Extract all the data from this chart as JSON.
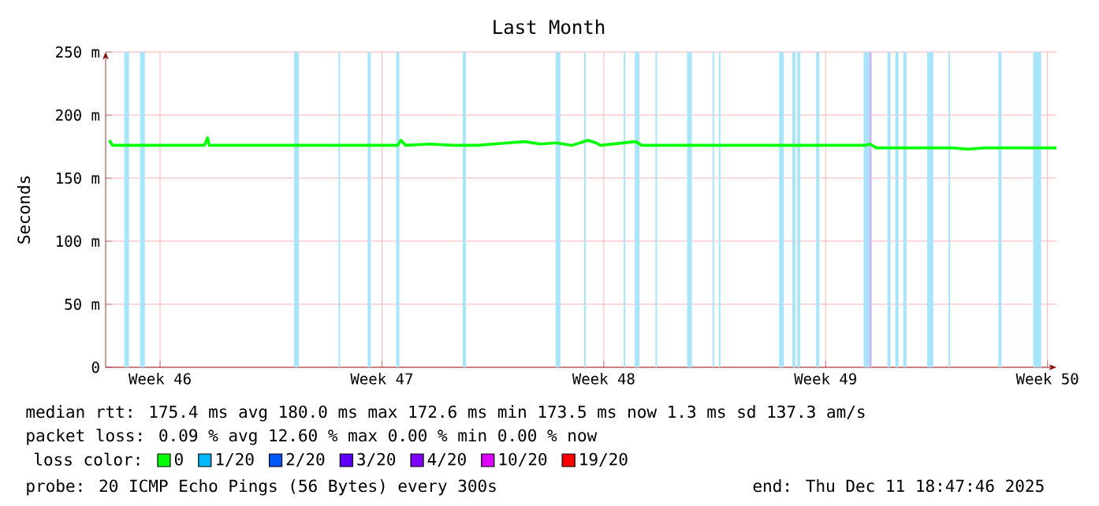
{
  "chart_data": {
    "type": "line",
    "title": "Last Month",
    "ylabel": "Seconds",
    "x": [
      "2025-11-11T21:36",
      "2025-11-12T00:00",
      "2025-11-14T21:36",
      "2025-11-15T00:00",
      "2025-11-15T01:12",
      "2025-11-21T00:00",
      "2025-11-21T02:24",
      "2025-11-21T06:00",
      "2025-11-22T00:00",
      "2025-11-22T18:00",
      "2025-11-23T12:00",
      "2025-11-24T12:00",
      "2025-11-25T00:00",
      "2025-11-25T12:00",
      "2025-11-26T00:00",
      "2025-11-26T12:00",
      "2025-11-27T00:00",
      "2025-11-27T06:00",
      "2025-11-27T09:36",
      "2025-11-28T12:00",
      "2025-11-28T16:48",
      "2025-12-05T18:00",
      "2025-12-05T21:36",
      "2025-12-06T02:24",
      "2025-12-06T12:00",
      "2025-12-08T12:00",
      "2025-12-09T00:00",
      "2025-12-09T12:00",
      "2025-12-11T18:47"
    ],
    "series": [
      {
        "name": "0",
        "color": "#00ff00",
        "values": [
          180,
          176,
          176,
          182,
          176,
          176,
          180,
          176,
          177,
          176,
          176,
          178,
          179,
          177,
          178,
          176,
          180,
          178,
          176,
          179,
          176,
          176,
          177,
          174,
          174,
          174,
          173,
          174,
          174
        ]
      },
      {
        "name": "1/20",
        "color": "#00b8ff",
        "values": [
          null,
          null,
          null,
          null,
          null,
          null,
          null,
          null,
          null,
          null,
          null,
          null,
          null,
          null,
          null,
          null,
          null,
          null,
          null,
          null,
          null,
          null,
          null,
          null,
          null,
          null,
          null,
          null,
          null
        ]
      },
      {
        "name": "2/20",
        "color": "#0059ff",
        "values": [
          null,
          null,
          null,
          null,
          null,
          null,
          null,
          null,
          null,
          null,
          null,
          null,
          null,
          null,
          null,
          null,
          null,
          null,
          null,
          null,
          null,
          null,
          null,
          null,
          null,
          null,
          null,
          null,
          null
        ]
      },
      {
        "name": "3/20",
        "color": "#5e00ff",
        "values": [
          null,
          null,
          null,
          null,
          null,
          null,
          null,
          null,
          null,
          null,
          null,
          null,
          null,
          null,
          null,
          null,
          null,
          null,
          null,
          null,
          null,
          null,
          null,
          null,
          null,
          null,
          null,
          null,
          null
        ]
      },
      {
        "name": "4/20",
        "color": "#7e00ff",
        "values": [
          null,
          null,
          null,
          null,
          null,
          null,
          null,
          null,
          null,
          null,
          null,
          null,
          null,
          null,
          null,
          null,
          null,
          null,
          null,
          null,
          null,
          null,
          null,
          null,
          null,
          null,
          null,
          null,
          null
        ]
      },
      {
        "name": "10/20",
        "color": "#dd00ff",
        "values": [
          null,
          null,
          null,
          null,
          null,
          null,
          null,
          null,
          null,
          null,
          null,
          null,
          null,
          null,
          null,
          null,
          null,
          null,
          null,
          null,
          null,
          null,
          null,
          null,
          null,
          null,
          null,
          null,
          null
        ]
      },
      {
        "name": "19/20",
        "color": "#ff0000",
        "values": [
          null,
          null,
          null,
          null,
          null,
          null,
          null,
          null,
          null,
          null,
          null,
          null,
          null,
          null,
          null,
          null,
          null,
          null,
          null,
          null,
          null,
          null,
          null,
          null,
          null,
          null,
          null,
          null,
          null
        ]
      }
    ],
    "legend_title": "loss color:",
    "legend": "bottom",
    "xlim": [
      "2025-11-11T18:47",
      "2025-12-11T18:47"
    ],
    "xticks": [
      {
        "value": "2025-11-13T12:00",
        "label": "Week 46"
      },
      {
        "value": "2025-11-20T12:00",
        "label": "Week 47"
      },
      {
        "value": "2025-11-27T12:00",
        "label": "Week 48"
      },
      {
        "value": "2025-12-04T12:00",
        "label": "Week 49"
      },
      {
        "value": "2025-12-11T12:00",
        "label": "Week 50"
      }
    ],
    "ylim": [
      0,
      250
    ],
    "yticks": [
      0,
      {
        "value": 50,
        "label": "50 m"
      },
      {
        "value": 100,
        "label": "100 m"
      },
      {
        "value": 150,
        "label": "150 m"
      },
      {
        "value": 200,
        "label": "200 m"
      },
      {
        "value": 250,
        "label": "250 m"
      }
    ],
    "grid": true,
    "bands": [
      {
        "axis": "x",
        "from": "2025-11-12T08:53",
        "to": "2025-11-12T12:29",
        "color": "#a8e4fa"
      },
      {
        "axis": "x",
        "from": "2025-11-12T20:53",
        "to": "2025-11-13T00:29",
        "color": "#a8e4fa"
      },
      {
        "axis": "x",
        "from": "2025-11-17T17:31",
        "to": "2025-11-17T21:07",
        "color": "#a8e4fa"
      },
      {
        "axis": "x",
        "from": "2025-11-19T03:07",
        "to": "2025-11-19T04:19",
        "color": "#a8e4fa"
      },
      {
        "axis": "x",
        "from": "2025-11-20T01:12",
        "to": "2025-11-20T03:36",
        "color": "#a8e4fa"
      },
      {
        "axis": "x",
        "from": "2025-11-20T22:48",
        "to": "2025-11-21T01:12",
        "color": "#a8e4fa"
      },
      {
        "axis": "x",
        "from": "2025-11-23T01:12",
        "to": "2025-11-23T03:36",
        "color": "#a8e4fa"
      },
      {
        "axis": "x",
        "from": "2025-11-25T23:31",
        "to": "2025-11-26T03:07",
        "color": "#a8e4fa"
      },
      {
        "axis": "x",
        "from": "2025-11-26T21:07",
        "to": "2025-11-26T22:19",
        "color": "#a8e4fa"
      },
      {
        "axis": "x",
        "from": "2025-11-28T03:07",
        "to": "2025-11-28T04:19",
        "color": "#a8e4fa"
      },
      {
        "axis": "x",
        "from": "2025-11-28T11:31",
        "to": "2025-11-28T15:07",
        "color": "#a8e4fa"
      },
      {
        "axis": "x",
        "from": "2025-11-29T03:07",
        "to": "2025-11-29T04:19",
        "color": "#a8e4fa"
      },
      {
        "axis": "x",
        "from": "2025-11-30T03:07",
        "to": "2025-11-30T06:43",
        "color": "#a8e4fa"
      },
      {
        "axis": "x",
        "from": "2025-11-30T22:19",
        "to": "2025-11-30T23:31",
        "color": "#a8e4fa"
      },
      {
        "axis": "x",
        "from": "2025-12-01T03:07",
        "to": "2025-12-01T04:19",
        "color": "#a8e4fa"
      },
      {
        "axis": "x",
        "from": "2025-12-03T00:43",
        "to": "2025-12-03T04:19",
        "color": "#a8e4fa"
      },
      {
        "axis": "x",
        "from": "2025-12-03T10:48",
        "to": "2025-12-03T13:12",
        "color": "#a8e4fa"
      },
      {
        "axis": "x",
        "from": "2025-12-03T14:24",
        "to": "2025-12-03T16:48",
        "color": "#a8e4fa"
      },
      {
        "axis": "x",
        "from": "2025-12-04T04:48",
        "to": "2025-12-04T07:12",
        "color": "#a8e4fa"
      },
      {
        "axis": "x",
        "from": "2025-12-05T16:48",
        "to": "2025-12-05T21:07",
        "color": "#a8e4fa"
      },
      {
        "axis": "x",
        "from": "2025-12-05T21:07",
        "to": "2025-12-05T22:48",
        "color": "#c8b4f4"
      },
      {
        "axis": "x",
        "from": "2025-12-06T10:48",
        "to": "2025-12-06T13:12",
        "color": "#a8e4fa"
      },
      {
        "axis": "x",
        "from": "2025-12-06T16:48",
        "to": "2025-12-06T19:12",
        "color": "#a8e4fa"
      },
      {
        "axis": "x",
        "from": "2025-12-06T22:48",
        "to": "2025-12-07T01:12",
        "color": "#a8e4fa"
      },
      {
        "axis": "x",
        "from": "2025-12-07T16:48",
        "to": "2025-12-07T21:36",
        "color": "#a8e4fa"
      },
      {
        "axis": "x",
        "from": "2025-12-08T09:07",
        "to": "2025-12-08T10:19",
        "color": "#a8e4fa"
      },
      {
        "axis": "x",
        "from": "2025-12-09T22:48",
        "to": "2025-12-10T01:12",
        "color": "#a8e4fa"
      },
      {
        "axis": "x",
        "from": "2025-12-11T01:12",
        "to": "2025-12-11T07:12",
        "color": "#a8e4fa"
      }
    ],
    "annotations": [
      "median rtt: 175.4 ms avg 180.0 ms max 172.6 ms min 173.5 ms now 1.3 ms sd 137.3 am/s",
      "packet loss: 0.09 % avg 12.60 % max 0.00 % min 0.00 % now",
      "probe: 20 ICMP Echo Pings (56 Bytes) every 300s",
      "end: Thu Dec 11 18:47:46 2025"
    ]
  }
}
